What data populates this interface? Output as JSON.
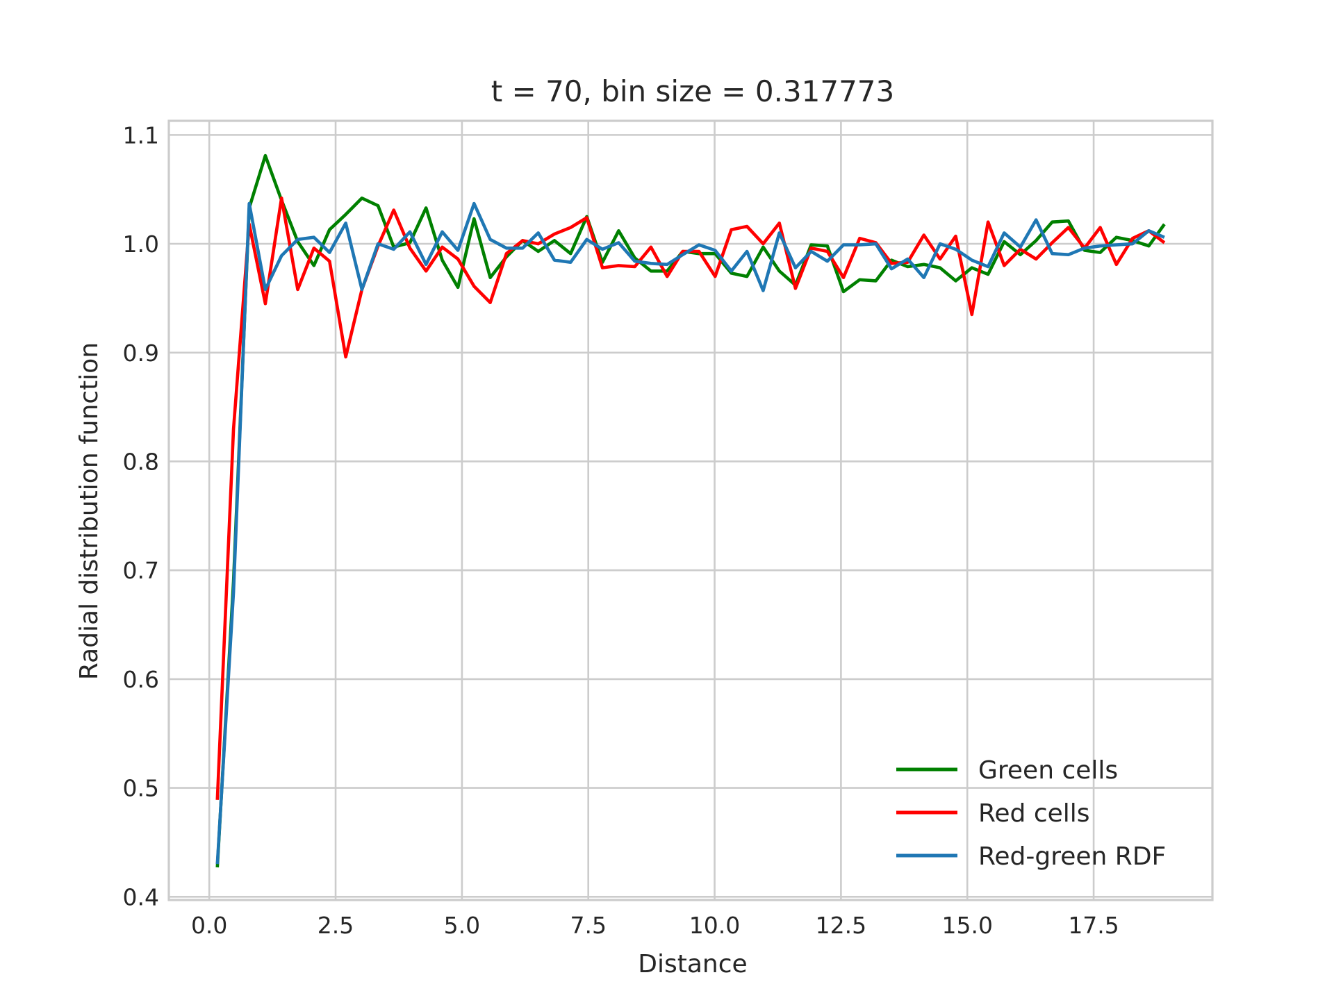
{
  "chart_data": {
    "type": "line",
    "title": "t = 70, bin size = 0.317773",
    "xlabel": "Distance",
    "ylabel": "Radial distribution function",
    "xlim": [
      -0.8,
      19.85
    ],
    "ylim": [
      0.397,
      1.113
    ],
    "x_ticks": [
      0.0,
      2.5,
      5.0,
      7.5,
      10.0,
      12.5,
      15.0,
      17.5
    ],
    "x_tick_labels": [
      "0.0",
      "2.5",
      "5.0",
      "7.5",
      "10.0",
      "12.5",
      "15.0",
      "17.5"
    ],
    "y_ticks": [
      0.4,
      0.5,
      0.6,
      0.7,
      0.8,
      0.9,
      1.0,
      1.1
    ],
    "y_tick_labels": [
      "0.4",
      "0.5",
      "0.6",
      "0.7",
      "0.8",
      "0.9",
      "1.0",
      "1.1"
    ],
    "grid": true,
    "legend_position": "lower-right",
    "x": [
      0.16,
      0.48,
      0.79,
      1.11,
      1.43,
      1.75,
      2.07,
      2.38,
      2.7,
      3.02,
      3.34,
      3.65,
      3.97,
      4.29,
      4.61,
      4.92,
      5.24,
      5.56,
      5.88,
      6.2,
      6.51,
      6.83,
      7.15,
      7.47,
      7.78,
      8.1,
      8.42,
      8.74,
      9.06,
      9.37,
      9.69,
      10.01,
      10.33,
      10.64,
      10.96,
      11.28,
      11.6,
      11.91,
      12.23,
      12.55,
      12.87,
      13.19,
      13.5,
      13.82,
      14.14,
      14.46,
      14.77,
      15.09,
      15.41,
      15.73,
      16.05,
      16.36,
      16.68,
      17.0,
      17.32,
      17.63,
      17.95,
      18.27,
      18.59,
      18.9
    ],
    "series": [
      {
        "name": "Green cells",
        "color": "#008000",
        "values": [
          0.427,
          0.69,
          1.033,
          1.081,
          1.04,
          1.002,
          0.98,
          1.013,
          1.027,
          1.042,
          1.035,
          0.997,
          1.001,
          1.033,
          0.985,
          0.96,
          1.023,
          0.969,
          0.988,
          1.003,
          0.993,
          1.003,
          0.991,
          1.025,
          0.983,
          1.012,
          0.987,
          0.975,
          0.975,
          0.993,
          0.991,
          0.991,
          0.973,
          0.97,
          0.997,
          0.975,
          0.962,
          0.999,
          0.998,
          0.956,
          0.967,
          0.966,
          0.985,
          0.979,
          0.981,
          0.978,
          0.966,
          0.978,
          0.972,
          1.002,
          0.99,
          1.003,
          1.02,
          1.021,
          0.994,
          0.992,
          1.006,
          1.003,
          0.998,
          1.018
        ]
      },
      {
        "name": "Red cells",
        "color": "#ff0000",
        "values": [
          0.489,
          0.83,
          1.018,
          0.945,
          1.042,
          0.958,
          0.996,
          0.984,
          0.896,
          0.958,
          0.998,
          1.031,
          0.996,
          0.975,
          0.997,
          0.986,
          0.961,
          0.946,
          0.991,
          1.003,
          1.0,
          1.009,
          1.015,
          1.024,
          0.978,
          0.98,
          0.979,
          0.997,
          0.97,
          0.993,
          0.993,
          0.97,
          1.013,
          1.016,
          1.0,
          1.019,
          0.959,
          0.996,
          0.993,
          0.969,
          1.005,
          1.001,
          0.982,
          0.983,
          1.008,
          0.986,
          1.007,
          0.935,
          1.02,
          0.98,
          0.995,
          0.986,
          1.001,
          1.015,
          0.996,
          1.015,
          0.981,
          1.005,
          1.012,
          1.001
        ]
      },
      {
        "name": "Red-green RDF",
        "color": "#1f77b4",
        "values": [
          0.43,
          0.68,
          1.037,
          0.958,
          0.989,
          1.004,
          1.006,
          0.992,
          1.019,
          0.958,
          1.0,
          0.995,
          1.011,
          0.981,
          1.011,
          0.994,
          1.037,
          1.004,
          0.996,
          0.996,
          1.01,
          0.985,
          0.983,
          1.004,
          0.995,
          1.001,
          0.984,
          0.982,
          0.981,
          0.99,
          0.999,
          0.994,
          0.975,
          0.993,
          0.957,
          1.01,
          0.978,
          0.993,
          0.984,
          0.999,
          0.999,
          1.0,
          0.977,
          0.986,
          0.969,
          1.0,
          0.995,
          0.985,
          0.979,
          1.01,
          0.997,
          1.022,
          0.991,
          0.99,
          0.996,
          0.998,
          0.999,
          1.0,
          1.012,
          1.006
        ]
      }
    ]
  }
}
